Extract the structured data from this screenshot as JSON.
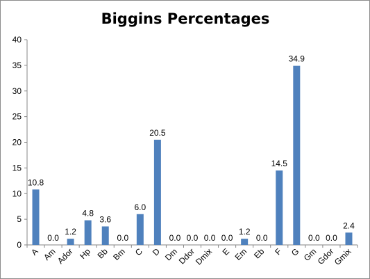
{
  "chart_data": {
    "type": "bar",
    "title": "Biggins Percentages",
    "xlabel": "",
    "ylabel": "",
    "categories": [
      "A",
      "Am",
      "Ador",
      "Hp",
      "Bb",
      "Bm",
      "C",
      "D",
      "Dm",
      "Ddor",
      "Dmix",
      "E",
      "Em",
      "Eb",
      "F",
      "G",
      "Gm",
      "Gdor",
      "Gmix"
    ],
    "values": [
      10.8,
      0.0,
      1.2,
      4.8,
      3.6,
      0.0,
      6.0,
      20.5,
      0.0,
      0.0,
      0.0,
      0.0,
      1.2,
      0.0,
      14.5,
      34.9,
      0.0,
      0.0,
      2.4
    ],
    "data_labels": [
      "10.8",
      "0.0",
      "1.2",
      "4.8",
      "3.6",
      "0.0",
      "6.0",
      "20.5",
      "0.0",
      "0.0",
      "0.0",
      "0.0",
      "1.2",
      "0.0",
      "14.5",
      "34.9",
      "0.0",
      "0.0",
      "2.4"
    ],
    "ylim": [
      0,
      40
    ],
    "yticks": [
      "0",
      "5",
      "10",
      "15",
      "20",
      "25",
      "30",
      "35",
      "40"
    ],
    "bar_color": "#4f81bd",
    "grid": false,
    "legend": "none"
  }
}
